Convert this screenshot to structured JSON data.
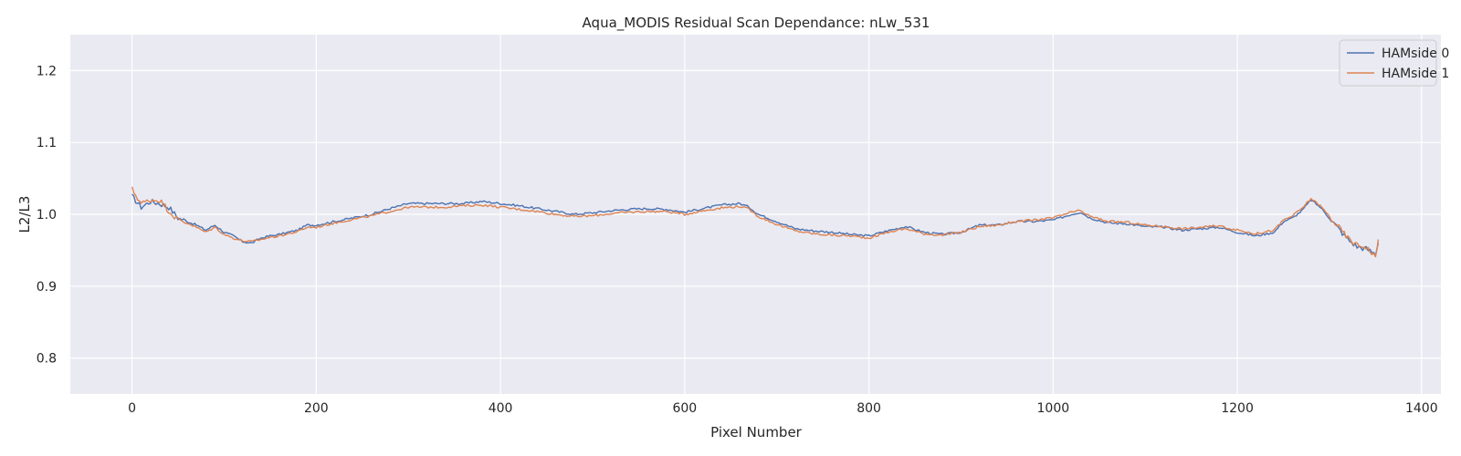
{
  "chart_data": {
    "type": "line",
    "title": "Aqua_MODIS Residual Scan Dependance: nLw_531",
    "xlabel": "Pixel Number",
    "ylabel": "L2/L3",
    "xlim": [
      -67,
      1421
    ],
    "ylim": [
      0.75,
      1.25
    ],
    "xticks": [
      0,
      200,
      400,
      600,
      800,
      1000,
      1200,
      1400
    ],
    "xtick_labels": [
      "0",
      "200",
      "400",
      "600",
      "800",
      "1000",
      "1200",
      "1400"
    ],
    "yticks": [
      0.8,
      0.9,
      1.0,
      1.1,
      1.2
    ],
    "ytick_labels": [
      "0.8",
      "0.9",
      "1.0",
      "1.1",
      "1.2"
    ],
    "grid": true,
    "background": "#eaeaf2",
    "legend_position": "top-right",
    "series": [
      {
        "name": "HAMside 0",
        "color": "#4c72b0",
        "x": [
          0,
          10,
          20,
          30,
          40,
          50,
          60,
          70,
          80,
          90,
          100,
          110,
          120,
          130,
          140,
          150,
          160,
          170,
          180,
          190,
          200,
          220,
          240,
          260,
          280,
          300,
          320,
          340,
          360,
          380,
          400,
          420,
          440,
          460,
          480,
          500,
          520,
          540,
          560,
          580,
          600,
          620,
          640,
          660,
          670,
          680,
          700,
          720,
          740,
          760,
          780,
          800,
          820,
          840,
          860,
          880,
          900,
          920,
          940,
          960,
          980,
          1000,
          1020,
          1030,
          1040,
          1060,
          1080,
          1100,
          1120,
          1140,
          1160,
          1180,
          1200,
          1220,
          1240,
          1250,
          1260,
          1270,
          1280,
          1290,
          1300,
          1310,
          1320,
          1330,
          1340,
          1350,
          1353
        ],
        "y": [
          1.025,
          1.01,
          1.018,
          1.015,
          1.01,
          0.995,
          0.99,
          0.985,
          0.978,
          0.985,
          0.975,
          0.97,
          0.962,
          0.96,
          0.967,
          0.97,
          0.972,
          0.975,
          0.978,
          0.985,
          0.985,
          0.99,
          0.995,
          1.0,
          1.008,
          1.015,
          1.015,
          1.015,
          1.015,
          1.018,
          1.015,
          1.012,
          1.008,
          1.004,
          1.0,
          1.002,
          1.005,
          1.007,
          1.008,
          1.007,
          1.003,
          1.008,
          1.013,
          1.015,
          1.01,
          1.0,
          0.99,
          0.98,
          0.977,
          0.975,
          0.972,
          0.97,
          0.977,
          0.983,
          0.975,
          0.972,
          0.975,
          0.985,
          0.985,
          0.99,
          0.99,
          0.992,
          1.0,
          1.003,
          0.995,
          0.988,
          0.987,
          0.983,
          0.982,
          0.978,
          0.98,
          0.982,
          0.975,
          0.97,
          0.975,
          0.99,
          0.995,
          1.005,
          1.02,
          1.01,
          0.995,
          0.98,
          0.965,
          0.955,
          0.952,
          0.945,
          0.96
        ]
      },
      {
        "name": "HAMside 1",
        "color": "#dd8452",
        "x": [
          0,
          10,
          20,
          30,
          40,
          50,
          60,
          70,
          80,
          90,
          100,
          110,
          120,
          130,
          140,
          150,
          160,
          170,
          180,
          190,
          200,
          220,
          240,
          260,
          280,
          300,
          320,
          340,
          360,
          380,
          400,
          420,
          440,
          460,
          480,
          500,
          520,
          540,
          560,
          580,
          600,
          620,
          640,
          660,
          670,
          680,
          700,
          720,
          740,
          760,
          780,
          800,
          820,
          840,
          860,
          880,
          900,
          920,
          940,
          960,
          980,
          1000,
          1020,
          1030,
          1040,
          1060,
          1080,
          1100,
          1120,
          1140,
          1160,
          1180,
          1200,
          1220,
          1240,
          1250,
          1260,
          1270,
          1280,
          1290,
          1300,
          1310,
          1320,
          1330,
          1340,
          1350,
          1353
        ],
        "y": [
          1.035,
          1.015,
          1.02,
          1.02,
          1.005,
          0.992,
          0.988,
          0.982,
          0.975,
          0.982,
          0.972,
          0.967,
          0.963,
          0.962,
          0.965,
          0.968,
          0.97,
          0.973,
          0.976,
          0.982,
          0.982,
          0.988,
          0.993,
          0.998,
          1.004,
          1.01,
          1.01,
          1.01,
          1.012,
          1.013,
          1.01,
          1.007,
          1.004,
          1.0,
          0.997,
          0.998,
          1.001,
          1.003,
          1.004,
          1.004,
          1.0,
          1.005,
          1.009,
          1.011,
          1.007,
          0.997,
          0.986,
          0.977,
          0.973,
          0.971,
          0.97,
          0.967,
          0.975,
          0.98,
          0.973,
          0.971,
          0.975,
          0.983,
          0.985,
          0.99,
          0.992,
          0.995,
          1.003,
          1.005,
          0.997,
          0.99,
          0.989,
          0.985,
          0.983,
          0.98,
          0.982,
          0.984,
          0.978,
          0.973,
          0.978,
          0.992,
          0.998,
          1.008,
          1.022,
          1.012,
          0.997,
          0.982,
          0.967,
          0.957,
          0.955,
          0.94,
          0.965
        ]
      }
    ]
  }
}
